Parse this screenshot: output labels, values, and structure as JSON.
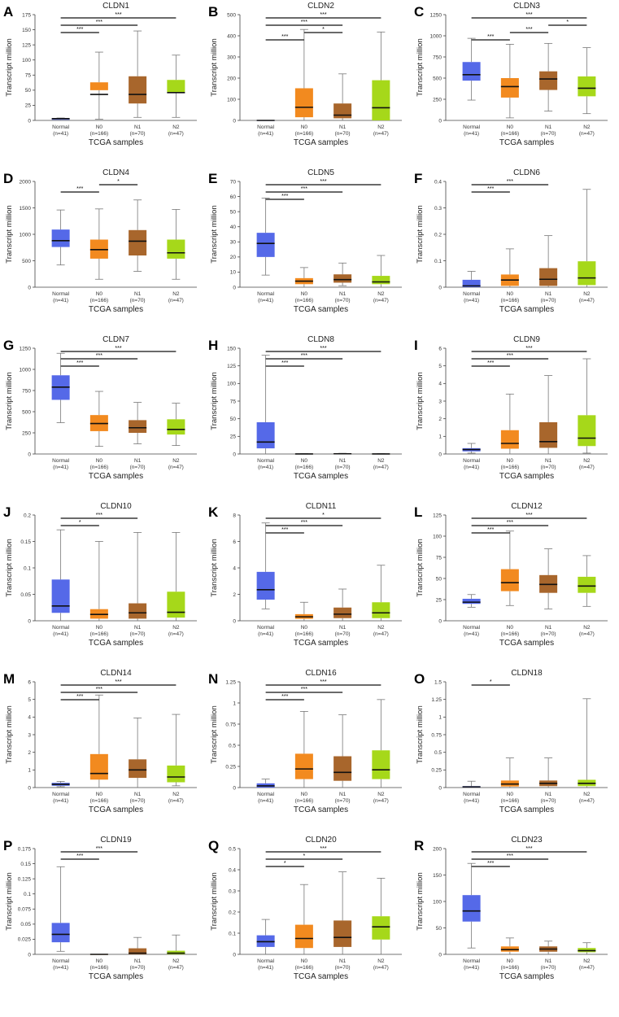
{
  "colors": {
    "Normal": "#5569e8",
    "N0": "#f28a1f",
    "N1": "#a8662c",
    "N2": "#a6d81a"
  },
  "x_title": "TCGA samples",
  "y_title": "Transcript million",
  "chart_data": [
    {
      "panel": "A",
      "type": "box",
      "title": "CLDN1",
      "ylim": [
        0,
        175
      ],
      "yticks": [
        "0",
        "25",
        "50",
        "75",
        "100",
        "125",
        "150",
        "175"
      ],
      "categories": [
        "Normal",
        "N0",
        "N1",
        "N2"
      ],
      "counts": [
        "(n=41)",
        "(n=166)",
        "(n=70)",
        "(n=47)"
      ],
      "boxes": [
        [
          0,
          1,
          2,
          3,
          4
        ],
        [
          2,
          50,
          63,
          43,
          113
        ],
        [
          5,
          28,
          73,
          43,
          148
        ],
        [
          5,
          47,
          67,
          46,
          108
        ]
      ],
      "sig": [
        {
          "from": 0,
          "to": 1,
          "label": "***"
        },
        {
          "from": 0,
          "to": 2,
          "label": "***"
        },
        {
          "from": 0,
          "to": 3,
          "label": "***"
        }
      ]
    },
    {
      "panel": "B",
      "type": "box",
      "title": "CLDN2",
      "ylim": [
        0,
        500
      ],
      "yticks": [
        "0",
        "100",
        "200",
        "300",
        "400",
        "500"
      ],
      "categories": [
        "Normal",
        "N0",
        "N1",
        "N2"
      ],
      "counts": [
        "(n=41)",
        "(n=166)",
        "(n=70)",
        "(n=47)"
      ],
      "boxes": [
        [
          0,
          0,
          0,
          0,
          0
        ],
        [
          0,
          15,
          152,
          62,
          430
        ],
        [
          0,
          10,
          80,
          25,
          220
        ],
        [
          0,
          0,
          190,
          60,
          418
        ]
      ],
      "sig": [
        {
          "from": 0,
          "to": 1,
          "label": "***"
        },
        {
          "from": 1,
          "to": 2,
          "label": "*"
        },
        {
          "from": 0,
          "to": 2,
          "label": "***"
        },
        {
          "from": 0,
          "to": 3,
          "label": "***"
        }
      ]
    },
    {
      "panel": "C",
      "type": "box",
      "title": "CLDN3",
      "ylim": [
        0,
        1250
      ],
      "yticks": [
        "0",
        "250",
        "500",
        "750",
        "1000",
        "1250"
      ],
      "categories": [
        "Normal",
        "N0",
        "N1",
        "N2"
      ],
      "counts": [
        "(n=41)",
        "(n=166)",
        "(n=70)",
        "(n=47)"
      ],
      "boxes": [
        [
          240,
          470,
          690,
          540,
          970
        ],
        [
          30,
          270,
          500,
          400,
          900
        ],
        [
          110,
          360,
          580,
          490,
          910
        ],
        [
          80,
          285,
          520,
          380,
          860
        ]
      ],
      "sig": [
        {
          "from": 0,
          "to": 1,
          "label": "***"
        },
        {
          "from": 1,
          "to": 2,
          "label": "***"
        },
        {
          "from": 2,
          "to": 3,
          "label": "*"
        },
        {
          "from": 0,
          "to": 3,
          "label": "***"
        }
      ]
    },
    {
      "panel": "D",
      "type": "box",
      "title": "CLDN4",
      "ylim": [
        0,
        2000
      ],
      "yticks": [
        "0",
        "500",
        "1000",
        "1500",
        "2000"
      ],
      "categories": [
        "Normal",
        "N0",
        "N1",
        "N2"
      ],
      "counts": [
        "(n=41)",
        "(n=166)",
        "(n=70)",
        "(n=47)"
      ],
      "boxes": [
        [
          420,
          760,
          1090,
          880,
          1460
        ],
        [
          150,
          540,
          900,
          710,
          1480
        ],
        [
          300,
          600,
          1080,
          870,
          1650
        ],
        [
          150,
          540,
          900,
          650,
          1470
        ]
      ],
      "sig": [
        {
          "from": 0,
          "to": 1,
          "label": "***"
        },
        {
          "from": 1,
          "to": 2,
          "label": "*"
        }
      ]
    },
    {
      "panel": "E",
      "type": "box",
      "title": "CLDN5",
      "ylim": [
        0,
        70
      ],
      "yticks": [
        "0",
        "10",
        "20",
        "30",
        "40",
        "50",
        "60",
        "70"
      ],
      "categories": [
        "Normal",
        "N0",
        "N1",
        "N2"
      ],
      "counts": [
        "(n=41)",
        "(n=166)",
        "(n=70)",
        "(n=47)"
      ],
      "boxes": [
        [
          8,
          20,
          36,
          29,
          59
        ],
        [
          0,
          2,
          6,
          4,
          13
        ],
        [
          1,
          3,
          8.5,
          5,
          16
        ],
        [
          0,
          2,
          7.5,
          3.5,
          21
        ]
      ],
      "sig": [
        {
          "from": 0,
          "to": 1,
          "label": "***"
        },
        {
          "from": 0,
          "to": 2,
          "label": "***"
        },
        {
          "from": 0,
          "to": 3,
          "label": "***"
        }
      ]
    },
    {
      "panel": "F",
      "type": "box",
      "title": "CLDN6",
      "ylim": [
        0,
        0.4
      ],
      "yticks": [
        "0",
        "0.1",
        "0.2",
        "0.3",
        "0.4"
      ],
      "categories": [
        "Normal",
        "N0",
        "N1",
        "N2"
      ],
      "counts": [
        "(n=41)",
        "(n=166)",
        "(n=70)",
        "(n=47)"
      ],
      "boxes": [
        [
          0,
          0,
          0.028,
          0.005,
          0.06
        ],
        [
          0,
          0.005,
          0.048,
          0.027,
          0.145
        ],
        [
          0,
          0.005,
          0.072,
          0.03,
          0.195
        ],
        [
          0,
          0.008,
          0.098,
          0.035,
          0.37
        ]
      ],
      "sig": [
        {
          "from": 0,
          "to": 1,
          "label": "***"
        },
        {
          "from": 0,
          "to": 2,
          "label": "***"
        }
      ]
    },
    {
      "panel": "G",
      "type": "box",
      "title": "CLDN7",
      "ylim": [
        0,
        1250
      ],
      "yticks": [
        "0",
        "250",
        "500",
        "750",
        "1000",
        "1250"
      ],
      "categories": [
        "Normal",
        "N0",
        "N1",
        "N2"
      ],
      "counts": [
        "(n=41)",
        "(n=166)",
        "(n=70)",
        "(n=47)"
      ],
      "boxes": [
        [
          370,
          640,
          930,
          790,
          1190
        ],
        [
          90,
          270,
          460,
          360,
          740
        ],
        [
          120,
          250,
          400,
          310,
          610
        ],
        [
          100,
          230,
          410,
          290,
          600
        ]
      ],
      "sig": [
        {
          "from": 0,
          "to": 1,
          "label": "***"
        },
        {
          "from": 0,
          "to": 2,
          "label": "***"
        },
        {
          "from": 0,
          "to": 3,
          "label": "***"
        }
      ]
    },
    {
      "panel": "H",
      "type": "box",
      "title": "CLDN8",
      "ylim": [
        0,
        150
      ],
      "yticks": [
        "0",
        "25",
        "50",
        "75",
        "100",
        "125",
        "150"
      ],
      "categories": [
        "Normal",
        "N0",
        "N1",
        "N2"
      ],
      "counts": [
        "(n=41)",
        "(n=166)",
        "(n=70)",
        "(n=47)"
      ],
      "boxes": [
        [
          0,
          8,
          45,
          17,
          140
        ],
        [
          0,
          0,
          0.3,
          0.1,
          0.5
        ],
        [
          0,
          0,
          0.6,
          0.3,
          1
        ],
        [
          0,
          0,
          0.3,
          0.1,
          0.5
        ]
      ],
      "sig": [
        {
          "from": 0,
          "to": 1,
          "label": "***"
        },
        {
          "from": 0,
          "to": 2,
          "label": "***"
        },
        {
          "from": 0,
          "to": 3,
          "label": "***"
        }
      ]
    },
    {
      "panel": "I",
      "type": "box",
      "title": "CLDN9",
      "ylim": [
        0,
        6
      ],
      "yticks": [
        "0",
        "1",
        "2",
        "3",
        "4",
        "5",
        "6"
      ],
      "categories": [
        "Normal",
        "N0",
        "N1",
        "N2"
      ],
      "counts": [
        "(n=41)",
        "(n=166)",
        "(n=70)",
        "(n=47)"
      ],
      "boxes": [
        [
          0.05,
          0.15,
          0.33,
          0.25,
          0.6
        ],
        [
          0,
          0.3,
          1.35,
          0.6,
          3.4
        ],
        [
          0,
          0.35,
          1.8,
          0.7,
          4.45
        ],
        [
          0.05,
          0.45,
          2.2,
          0.9,
          5.4
        ]
      ],
      "sig": [
        {
          "from": 0,
          "to": 1,
          "label": "***"
        },
        {
          "from": 0,
          "to": 2,
          "label": "***"
        },
        {
          "from": 0,
          "to": 3,
          "label": "***"
        }
      ]
    },
    {
      "panel": "J",
      "type": "box",
      "title": "CLDN10",
      "ylim": [
        0,
        0.2
      ],
      "yticks": [
        "0",
        "0.05",
        "0.1",
        "0.15",
        "0.2"
      ],
      "categories": [
        "Normal",
        "N0",
        "N1",
        "N2"
      ],
      "counts": [
        "(n=41)",
        "(n=166)",
        "(n=70)",
        "(n=47)"
      ],
      "boxes": [
        [
          0,
          0.015,
          0.078,
          0.028,
          0.172
        ],
        [
          0,
          0.004,
          0.022,
          0.012,
          0.15
        ],
        [
          0,
          0.004,
          0.033,
          0.015,
          0.167
        ],
        [
          0,
          0.006,
          0.055,
          0.016,
          0.167
        ]
      ],
      "sig": [
        {
          "from": 0,
          "to": 1,
          "label": "*"
        },
        {
          "from": 0,
          "to": 2,
          "label": "***"
        }
      ]
    },
    {
      "panel": "K",
      "type": "box",
      "title": "CLDN11",
      "ylim": [
        0,
        8
      ],
      "yticks": [
        "0",
        "2",
        "4",
        "6",
        "8"
      ],
      "categories": [
        "Normal",
        "N0",
        "N1",
        "N2"
      ],
      "counts": [
        "(n=41)",
        "(n=166)",
        "(n=70)",
        "(n=47)"
      ],
      "boxes": [
        [
          0.9,
          1.6,
          3.7,
          2.35,
          7.4
        ],
        [
          0,
          0.15,
          0.5,
          0.3,
          1.4
        ],
        [
          0,
          0.2,
          1.0,
          0.5,
          2.4
        ],
        [
          0,
          0.2,
          1.4,
          0.6,
          4.2
        ]
      ],
      "sig": [
        {
          "from": 0,
          "to": 1,
          "label": "***"
        },
        {
          "from": 0,
          "to": 2,
          "label": "***"
        },
        {
          "from": 0,
          "to": 3,
          "label": "*"
        }
      ]
    },
    {
      "panel": "L",
      "type": "box",
      "title": "CLDN12",
      "ylim": [
        0,
        125
      ],
      "yticks": [
        "0",
        "25",
        "50",
        "75",
        "100",
        "125"
      ],
      "categories": [
        "Normal",
        "N0",
        "N1",
        "N2"
      ],
      "counts": [
        "(n=41)",
        "(n=166)",
        "(n=70)",
        "(n=47)"
      ],
      "boxes": [
        [
          16,
          20,
          26,
          22,
          31
        ],
        [
          18,
          35,
          61,
          45,
          106
        ],
        [
          14,
          33,
          54,
          43,
          85
        ],
        [
          17,
          33,
          52,
          41,
          77
        ]
      ],
      "sig": [
        {
          "from": 0,
          "to": 1,
          "label": "***"
        },
        {
          "from": 0,
          "to": 2,
          "label": "***"
        },
        {
          "from": 0,
          "to": 3,
          "label": "***"
        }
      ]
    },
    {
      "panel": "M",
      "type": "box",
      "title": "CLDN14",
      "ylim": [
        0,
        6
      ],
      "yticks": [
        "0",
        "1",
        "2",
        "3",
        "4",
        "5",
        "6"
      ],
      "categories": [
        "Normal",
        "N0",
        "N1",
        "N2"
      ],
      "counts": [
        "(n=41)",
        "(n=166)",
        "(n=70)",
        "(n=47)"
      ],
      "boxes": [
        [
          0.05,
          0.1,
          0.27,
          0.18,
          0.35
        ],
        [
          0,
          0.45,
          1.9,
          0.8,
          5.25
        ],
        [
          0,
          0.55,
          1.6,
          1.0,
          3.95
        ],
        [
          0.1,
          0.3,
          1.25,
          0.6,
          4.15
        ]
      ],
      "sig": [
        {
          "from": 0,
          "to": 1,
          "label": "***"
        },
        {
          "from": 0,
          "to": 2,
          "label": "***"
        },
        {
          "from": 0,
          "to": 3,
          "label": "***"
        }
      ]
    },
    {
      "panel": "N",
      "type": "box",
      "title": "CLDN16",
      "ylim": [
        0,
        1.25
      ],
      "yticks": [
        "0",
        "0.25",
        "0.5",
        "0.75",
        "1",
        "1.25"
      ],
      "categories": [
        "Normal",
        "N0",
        "N1",
        "N2"
      ],
      "counts": [
        "(n=41)",
        "(n=166)",
        "(n=70)",
        "(n=47)"
      ],
      "boxes": [
        [
          0,
          0,
          0.05,
          0.02,
          0.1
        ],
        [
          0,
          0.1,
          0.4,
          0.22,
          0.9
        ],
        [
          0,
          0.08,
          0.37,
          0.18,
          0.86
        ],
        [
          0,
          0.1,
          0.44,
          0.21,
          1.04
        ]
      ],
      "sig": [
        {
          "from": 0,
          "to": 1,
          "label": "***"
        },
        {
          "from": 0,
          "to": 2,
          "label": "***"
        },
        {
          "from": 0,
          "to": 3,
          "label": "***"
        }
      ]
    },
    {
      "panel": "O",
      "type": "box",
      "title": "CLDN18",
      "ylim": [
        0,
        1.5
      ],
      "yticks": [
        "0",
        "0.25",
        "0.5",
        "0.75",
        "1",
        "1.25",
        "1.5"
      ],
      "categories": [
        "Normal",
        "N0",
        "N1",
        "N2"
      ],
      "counts": [
        "(n=41)",
        "(n=166)",
        "(n=70)",
        "(n=47)"
      ],
      "boxes": [
        [
          0,
          0,
          0.02,
          0.01,
          0.09
        ],
        [
          0,
          0.015,
          0.1,
          0.05,
          0.42
        ],
        [
          0,
          0.02,
          0.1,
          0.06,
          0.42
        ],
        [
          0,
          0.02,
          0.11,
          0.06,
          1.26
        ]
      ],
      "sig": [
        {
          "from": 0,
          "to": 1,
          "label": "*"
        }
      ]
    },
    {
      "panel": "P",
      "type": "box",
      "title": "CLDN19",
      "ylim": [
        0,
        0.175
      ],
      "yticks": [
        "0",
        "0.025",
        "0.05",
        "0.075",
        "0.1",
        "0.125",
        "0.15",
        "0.175"
      ],
      "categories": [
        "Normal",
        "N0",
        "N1",
        "N2"
      ],
      "counts": [
        "(n=41)",
        "(n=166)",
        "(n=70)",
        "(n=47)"
      ],
      "boxes": [
        [
          0.005,
          0.02,
          0.052,
          0.033,
          0.145
        ],
        [
          0,
          0,
          0,
          0,
          0
        ],
        [
          0,
          0,
          0.01,
          0.002,
          0.028
        ],
        [
          0,
          0,
          0.006,
          0.002,
          0.032
        ]
      ],
      "sig": [
        {
          "from": 0,
          "to": 1,
          "label": "***"
        },
        {
          "from": 0,
          "to": 2,
          "label": "***"
        }
      ]
    },
    {
      "panel": "Q",
      "type": "box",
      "title": "CLDN20",
      "ylim": [
        0,
        0.5
      ],
      "yticks": [
        "0",
        "0.1",
        "0.2",
        "0.3",
        "0.4",
        "0.5"
      ],
      "categories": [
        "Normal",
        "N0",
        "N1",
        "N2"
      ],
      "counts": [
        "(n=41)",
        "(n=166)",
        "(n=70)",
        "(n=47)"
      ],
      "boxes": [
        [
          0,
          0.035,
          0.09,
          0.06,
          0.165
        ],
        [
          0,
          0.03,
          0.14,
          0.075,
          0.33
        ],
        [
          0,
          0.035,
          0.16,
          0.08,
          0.39
        ],
        [
          0,
          0.07,
          0.18,
          0.13,
          0.36
        ]
      ],
      "sig": [
        {
          "from": 0,
          "to": 1,
          "label": "*"
        },
        {
          "from": 0,
          "to": 2,
          "label": "*"
        },
        {
          "from": 0,
          "to": 3,
          "label": "***"
        }
      ]
    },
    {
      "panel": "R",
      "type": "box",
      "title": "CLDN23",
      "ylim": [
        0,
        200
      ],
      "yticks": [
        "0",
        "50",
        "100",
        "150",
        "200"
      ],
      "categories": [
        "Normal",
        "N0",
        "N1",
        "N2"
      ],
      "counts": [
        "(n=41)",
        "(n=166)",
        "(n=70)",
        "(n=47)"
      ],
      "boxes": [
        [
          12,
          62,
          112,
          82,
          172
        ],
        [
          0,
          5,
          15,
          9,
          31
        ],
        [
          0,
          5,
          15,
          10,
          25
        ],
        [
          0,
          4,
          12,
          7,
          22
        ]
      ],
      "sig": [
        {
          "from": 0,
          "to": 1,
          "label": "***"
        },
        {
          "from": 0,
          "to": 2,
          "label": "***"
        },
        {
          "from": 0,
          "to": 3,
          "label": "***"
        }
      ]
    }
  ]
}
